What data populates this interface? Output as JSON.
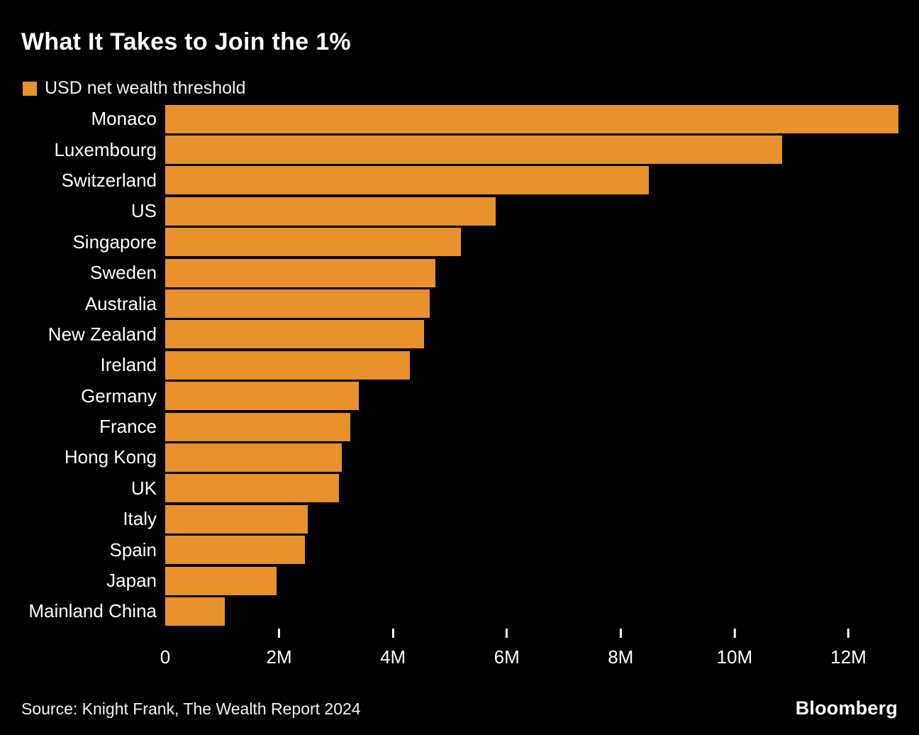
{
  "title": "What It Takes to Join the 1%",
  "legend": {
    "label": "USD net wealth threshold",
    "color": "#e8912d"
  },
  "source": "Source: Knight Frank, The Wealth Report 2024",
  "brand": "Bloomberg",
  "chart_data": {
    "type": "bar",
    "orientation": "horizontal",
    "title": "What It Takes to Join the 1%",
    "legend_entries": [
      "USD net wealth threshold"
    ],
    "legend_position": "top-left",
    "unit": "USD millions",
    "categories": [
      "Monaco",
      "Luxembourg",
      "Switzerland",
      "US",
      "Singapore",
      "Sweden",
      "Australia",
      "New Zealand",
      "Ireland",
      "Germany",
      "France",
      "Hong Kong",
      "UK",
      "Italy",
      "Spain",
      "Japan",
      "Mainland China"
    ],
    "values_m": [
      12.88,
      10.83,
      8.5,
      5.8,
      5.2,
      4.75,
      4.65,
      4.55,
      4.3,
      3.4,
      3.25,
      3.1,
      3.05,
      2.5,
      2.45,
      1.95,
      1.05
    ],
    "x_ticks_m": [
      0,
      2,
      4,
      6,
      8,
      10,
      12
    ],
    "x_tick_labels": [
      "0",
      "2M",
      "4M",
      "6M",
      "8M",
      "10M",
      "12M"
    ],
    "axis_max_m": 13.24,
    "xlabel": "",
    "ylabel": "",
    "grid": false,
    "bar_color": "#e8912d",
    "background_color": "#000000"
  }
}
